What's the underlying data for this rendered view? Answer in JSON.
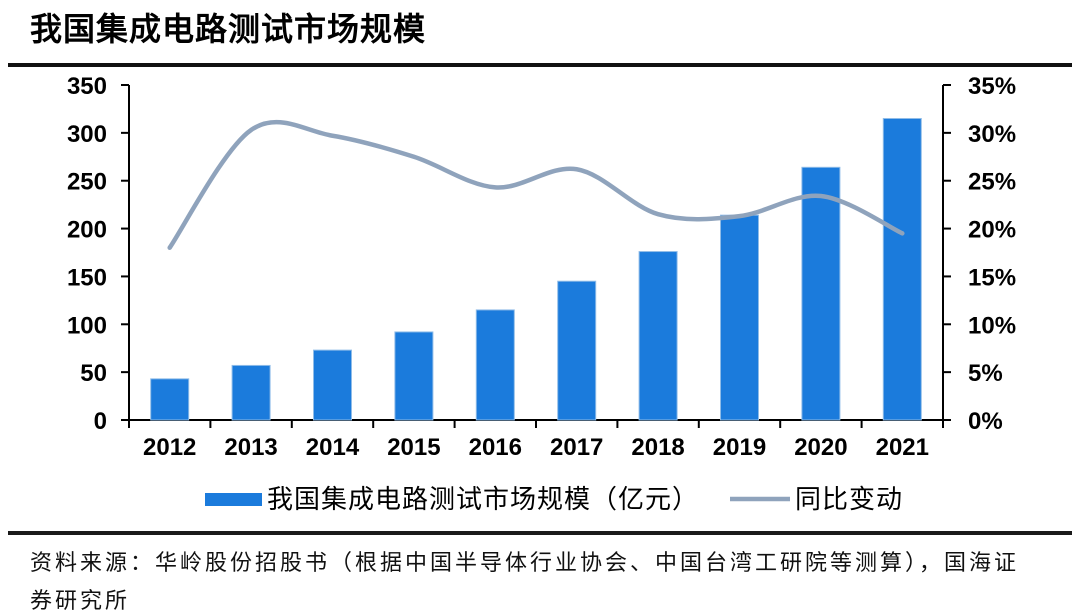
{
  "page": {
    "source_line1": "资料来源：华岭股份招股书（根据中国半导体行业协会、中国台湾工研院等测算），国海证",
    "source_line2": "券研究所"
  },
  "chart_data": {
    "type": "bar+line combo",
    "title": "我国集成电路测试市场规模",
    "categories": [
      "2012",
      "2013",
      "2014",
      "2015",
      "2016",
      "2017",
      "2018",
      "2019",
      "2020",
      "2021"
    ],
    "series": [
      {
        "name": "我国集成电路测试市场规模（亿元）",
        "type": "bar",
        "axis": "left",
        "color": "#1B7BDC",
        "edge_color": "#8FBCE8",
        "values": [
          43,
          57,
          73,
          92,
          115,
          145,
          176,
          214,
          264,
          315
        ]
      },
      {
        "name": "同比变动",
        "type": "line",
        "axis": "right",
        "color": "#8FA3BC",
        "values_percent": [
          18.0,
          30.3,
          29.7,
          27.5,
          24.3,
          26.2,
          21.5,
          21.3,
          23.4,
          19.5
        ]
      }
    ],
    "left_axis": {
      "min": 0,
      "max": 350,
      "step": 50,
      "tick_labels": [
        "0",
        "50",
        "100",
        "150",
        "200",
        "250",
        "300",
        "350"
      ]
    },
    "right_axis": {
      "min": 0,
      "max": 35,
      "step": 5,
      "tick_labels": [
        "0%",
        "5%",
        "10%",
        "15%",
        "20%",
        "25%",
        "30%",
        "35%"
      ]
    },
    "grid": false,
    "legend_position": "bottom",
    "axis_color": "#000000"
  }
}
